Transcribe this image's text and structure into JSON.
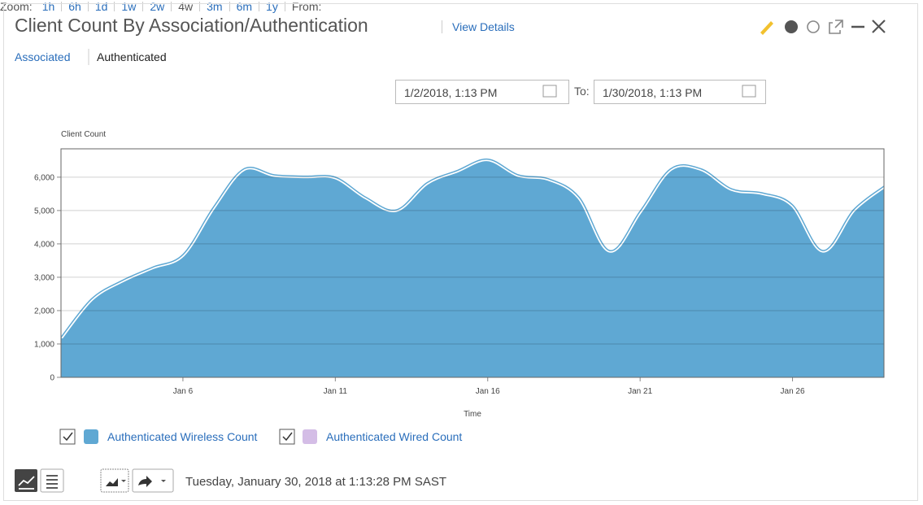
{
  "header": {
    "title": "Client Count By Association/Authentication",
    "link": "View Details"
  },
  "tabs": [
    "Associated",
    "Authenticated"
  ],
  "zoom": {
    "label": "Zoom:",
    "options": [
      "1h",
      "6h",
      "1d",
      "1w",
      "2w",
      "4w",
      "3m",
      "6m",
      "1y"
    ],
    "selected": "4w",
    "from_label": "From:",
    "from": "1/2/2018, 1:13 PM",
    "to_label": "To:",
    "to": "1/30/2018, 1:13 PM"
  },
  "chart_data": {
    "type": "area",
    "ylabel": "Client Count",
    "xlabel": "Time",
    "x": [
      2,
      3,
      4,
      5,
      6,
      7,
      8,
      9,
      10,
      11,
      12,
      13,
      14,
      15,
      16,
      17,
      18,
      19,
      20,
      21,
      22,
      23,
      24,
      25,
      26,
      27,
      28,
      29
    ],
    "series": [
      {
        "name": "Authenticated Wireless Count",
        "color": "#5fa8d3",
        "values": [
          1200,
          2350,
          2900,
          3300,
          3680,
          5100,
          6250,
          6070,
          6030,
          6000,
          5400,
          5020,
          5830,
          6200,
          6540,
          6070,
          5950,
          5400,
          3800,
          4980,
          6250,
          6250,
          5650,
          5530,
          5170,
          3800,
          5020,
          5730
        ]
      },
      {
        "name": "Authenticated Wired Count",
        "color": "#d4bde6"
      }
    ],
    "xlim": [
      2,
      29
    ],
    "xticks": [
      {
        "value": 6,
        "label": "Jan 6"
      },
      {
        "value": 11,
        "label": "Jan 11"
      },
      {
        "value": 16,
        "label": "Jan 16"
      },
      {
        "value": 21,
        "label": "Jan 21"
      },
      {
        "value": 26,
        "label": "Jan 26"
      }
    ],
    "ylim": [
      0,
      6850
    ],
    "yticks": [
      0,
      {
        "value": 1000,
        "label": "1,000"
      },
      {
        "value": 2000,
        "label": "2,000"
      },
      {
        "value": 3000,
        "label": "3,000"
      },
      {
        "value": 4000,
        "label": "4,000"
      },
      {
        "value": 5000,
        "label": "5,000"
      },
      {
        "value": 6000,
        "label": "6,000"
      }
    ],
    "grid": true
  },
  "footer": {
    "timestamp": "Tuesday, January 30, 2018 at 1:13:28 PM SAST"
  }
}
